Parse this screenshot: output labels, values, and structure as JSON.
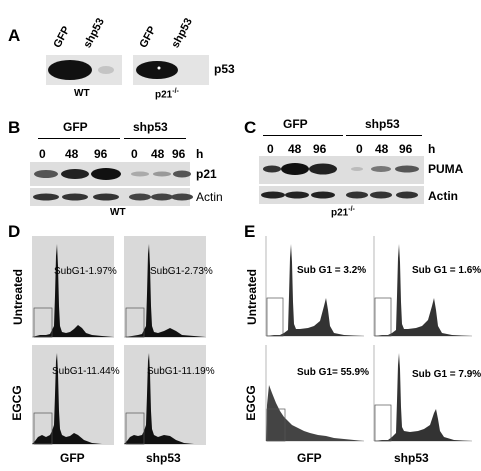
{
  "panelA": {
    "label": "A",
    "lanes": [
      "GFP",
      "shp53",
      "GFP",
      "shp53"
    ],
    "protein": "p53",
    "cell_lines": [
      "WT",
      "p21"
    ],
    "superscript": "-/-"
  },
  "panelB": {
    "label": "B",
    "groups": [
      "GFP",
      "shp53"
    ],
    "timepoints": [
      "0",
      "48",
      "96",
      "0",
      "48",
      "96"
    ],
    "unit": "h",
    "proteins": [
      "p21",
      "Actin"
    ],
    "cell_line": "WT"
  },
  "panelC": {
    "label": "C",
    "groups": [
      "GFP",
      "shp53"
    ],
    "timepoints": [
      "0",
      "48",
      "96",
      "0",
      "48",
      "96"
    ],
    "unit": "h",
    "proteins": [
      "PUMA",
      "Actin"
    ],
    "cell_line": "p21",
    "superscript": "-/-"
  },
  "panelD": {
    "label": "D",
    "row_labels": [
      "Untreated",
      "EGCG"
    ],
    "col_labels": [
      "GFP",
      "shp53"
    ],
    "subg1": [
      "SubG1-1.97%",
      "SubG1-2.73%",
      "SubG1-11.44%",
      "SubG1-11.19%"
    ]
  },
  "panelE": {
    "label": "E",
    "row_labels": [
      "Untreated",
      "EGCG"
    ],
    "col_labels": [
      "GFP",
      "shp53"
    ],
    "subg1": [
      "Sub G1  = 3.2%",
      "Sub G1  = 1.6%",
      "Sub G1= 55.9%",
      "Sub G1  = 7.9%"
    ]
  }
}
